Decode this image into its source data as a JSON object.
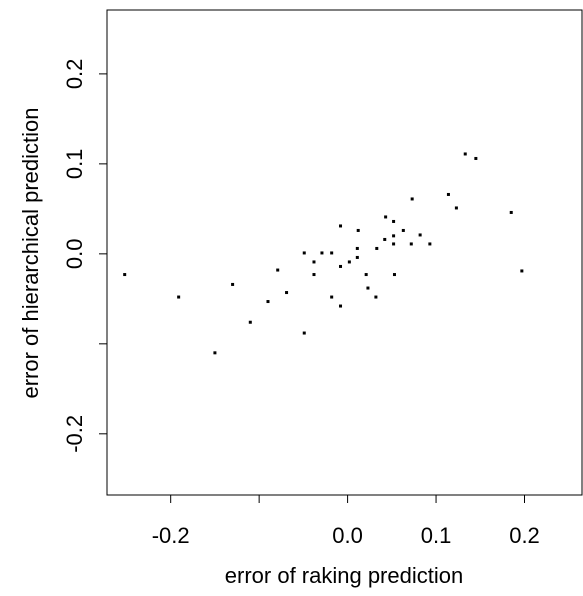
{
  "chart_data": {
    "type": "scatter",
    "xlabel": "error of raking prediction",
    "ylabel": "error of hierarchical prediction",
    "color": "#000000",
    "x": [
      -0.252,
      -0.191,
      -0.15,
      -0.13,
      -0.11,
      -0.09,
      -0.079,
      -0.069,
      -0.049,
      -0.049,
      -0.038,
      -0.038,
      -0.029,
      -0.018,
      -0.018,
      -0.008,
      -0.008,
      -0.008,
      0.002,
      0.011,
      0.011,
      0.012,
      0.021,
      0.023,
      0.032,
      0.033,
      0.042,
      0.043,
      0.052,
      0.052,
      0.052,
      0.053,
      0.063,
      0.072,
      0.073,
      0.082,
      0.093,
      0.114,
      0.123,
      0.133,
      0.145,
      0.185,
      0.197
    ],
    "values": [
      -0.023,
      -0.048,
      -0.11,
      -0.034,
      -0.076,
      -0.053,
      -0.018,
      -0.043,
      0.001,
      -0.088,
      -0.009,
      -0.023,
      0.001,
      0.001,
      -0.048,
      -0.014,
      -0.058,
      0.031,
      -0.009,
      -0.004,
      0.006,
      0.026,
      -0.023,
      -0.038,
      -0.048,
      0.006,
      0.016,
      0.041,
      0.036,
      0.02,
      0.011,
      -0.023,
      0.026,
      0.011,
      0.061,
      0.021,
      0.011,
      0.066,
      0.051,
      0.111,
      0.106,
      0.046,
      -0.019
    ],
    "xlim": [
      -0.272,
      0.265
    ],
    "ylim": [
      -0.268,
      0.271
    ],
    "xticks": [
      -0.2,
      {
        "value": -0.1,
        "label": null
      },
      {
        "value": 0,
        "label": "0.0"
      },
      0.1,
      0.2
    ],
    "yticks": [
      -0.2,
      {
        "value": -0.1,
        "label": null
      },
      {
        "value": 0,
        "label": "0.0"
      },
      0.1,
      0.2
    ]
  }
}
